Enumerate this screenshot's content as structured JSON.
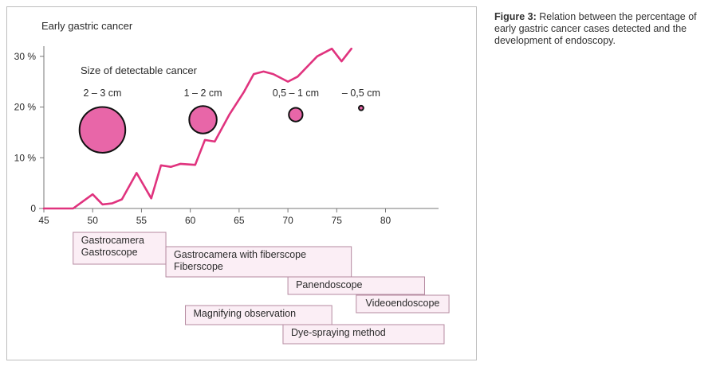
{
  "caption": {
    "label": "Figure 3:",
    "text": "Relation between the percentage of early gastric cancer cases detected and the development of endoscopy."
  },
  "chart_data": {
    "type": "line",
    "ylabel": "Early gastric cancer",
    "xlim": [
      45,
      82
    ],
    "ylim": [
      0,
      32
    ],
    "x_ticks": [
      45,
      50,
      55,
      60,
      65,
      70,
      75,
      80
    ],
    "y_ticks": [
      {
        "value": 0,
        "label": "0"
      },
      {
        "value": 10,
        "label": "10 %"
      },
      {
        "value": 20,
        "label": "20 %"
      },
      {
        "value": 30,
        "label": "30 %"
      }
    ],
    "grid": false,
    "series": [
      {
        "color": "#e0337e",
        "x": [
          45,
          48,
          50,
          51,
          52,
          53,
          54.5,
          56,
          57,
          58,
          59,
          60.5,
          61.5,
          62.5,
          64,
          65.5,
          66.5,
          67.5,
          68.5,
          70,
          71,
          72,
          73,
          74.5,
          75.5,
          76.5
        ],
        "y": [
          0,
          0,
          2.8,
          0.8,
          1,
          1.8,
          7,
          2,
          8.5,
          8.2,
          8.8,
          8.6,
          13.5,
          13.2,
          18.5,
          23,
          26.5,
          27,
          26.5,
          25,
          26,
          28,
          30,
          31.5,
          29,
          31.5
        ]
      }
    ],
    "annotation_title": "Size of detectable cancer",
    "size_markers": [
      {
        "label": "2 – 3 cm",
        "x": 51,
        "y": 15.5,
        "radius_mm": 25
      },
      {
        "label": "1 – 2 cm",
        "x": 61.3,
        "y": 17.5,
        "radius_mm": 15
      },
      {
        "label": "0,5 – 1 cm",
        "x": 70.8,
        "y": 18.5,
        "radius_mm": 7.5
      },
      {
        "label": "– 0,5 cm",
        "x": 77.5,
        "y": 19.8,
        "radius_mm": 2.5
      }
    ],
    "marker_fill": "#e866a8",
    "technology_eras": [
      {
        "lines": [
          "Gastrocamera",
          "Gastroscope"
        ],
        "start": 48,
        "end": 57.5
      },
      {
        "lines": [
          "Gastrocamera with fiberscope",
          "Fiberscope"
        ],
        "start": 57.5,
        "end": 76.5
      },
      {
        "lines": [
          "Panendoscope"
        ],
        "start": 70,
        "end": 84
      },
      {
        "lines": [
          "Videoendoscope"
        ],
        "start": 77,
        "end": 86.5
      },
      {
        "lines": [
          "Magnifying observation"
        ],
        "start": 59.5,
        "end": 74.5
      },
      {
        "lines": [
          "Dye-spraying method"
        ],
        "start": 69.5,
        "end": 86
      }
    ],
    "era_fill": "#fbeef5",
    "era_border": "#b58aa0"
  }
}
